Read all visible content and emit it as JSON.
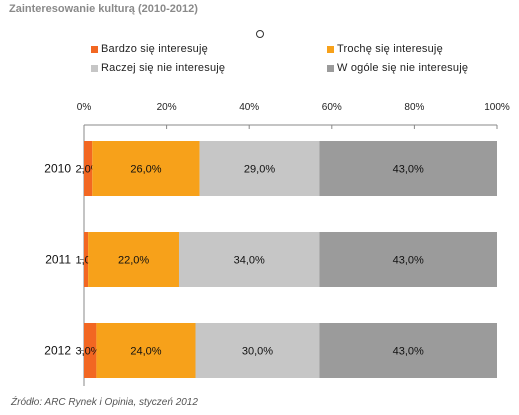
{
  "title": "Zainteresowanie kulturą (2010-2012)",
  "source": "Źródło: ARC Rynek i Opinia, styczeń 2012",
  "chart_data": {
    "type": "bar",
    "orientation": "horizontal-stacked-100",
    "categories": [
      "2010",
      "2011",
      "2012"
    ],
    "series": [
      {
        "name": "Bardzo się interesuję",
        "color": "#f26722",
        "values": [
          2.0,
          1.0,
          3.0
        ],
        "labels": [
          "2,0%",
          "1,0%",
          "3,0%"
        ]
      },
      {
        "name": "Trochę się interesuję",
        "color": "#f7a11a",
        "values": [
          26.0,
          22.0,
          24.0
        ],
        "labels": [
          "26,0%",
          "22,0%",
          "24,0%"
        ]
      },
      {
        "name": "Raczej się nie interesuję",
        "color": "#c6c6c6",
        "values": [
          29.0,
          34.0,
          30.0
        ],
        "labels": [
          "29,0%",
          "34,0%",
          "30,0%"
        ]
      },
      {
        "name": "W ogóle się nie interesuję",
        "color": "#9b9b9b",
        "values": [
          43.0,
          43.0,
          43.0
        ],
        "labels": [
          "43,0%",
          "43,0%",
          "43,0%"
        ]
      }
    ],
    "xlim": [
      0,
      100
    ],
    "xticks": [
      0,
      20,
      40,
      60,
      80,
      100
    ],
    "xtick_labels": [
      "0%",
      "20%",
      "40%",
      "60%",
      "80%",
      "100%"
    ],
    "legend_position": "top",
    "grid": false
  }
}
